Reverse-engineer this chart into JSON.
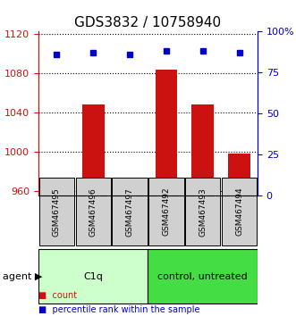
{
  "title": "GDS3832 / 10758940",
  "samples": [
    "GSM467495",
    "GSM467496",
    "GSM467497",
    "GSM467492",
    "GSM467493",
    "GSM467494"
  ],
  "counts": [
    972,
    1048,
    962,
    1083,
    1048,
    998
  ],
  "percentiles": [
    86,
    87,
    86,
    88,
    88,
    87
  ],
  "groups": [
    {
      "label": "C1q",
      "samples": [
        "GSM467495",
        "GSM467496",
        "GSM467497"
      ],
      "color": "#ccffcc"
    },
    {
      "label": "control, untreated",
      "samples": [
        "GSM467492",
        "GSM467493",
        "GSM467494"
      ],
      "color": "#44dd44"
    }
  ],
  "ylim_left": [
    955,
    1122
  ],
  "ylim_right": [
    0,
    100
  ],
  "yticks_left": [
    960,
    1000,
    1040,
    1080,
    1120
  ],
  "yticks_right": [
    0,
    25,
    50,
    75,
    100
  ],
  "bar_color": "#cc1111",
  "dot_color": "#0000cc",
  "bar_width": 0.6,
  "background_color": "#ffffff",
  "plot_bg_color": "#ffffff",
  "grid_color": "#000000",
  "title_fontsize": 11,
  "axis_label_fontsize": 8,
  "tick_fontsize": 8,
  "sample_label_fontsize": 7
}
